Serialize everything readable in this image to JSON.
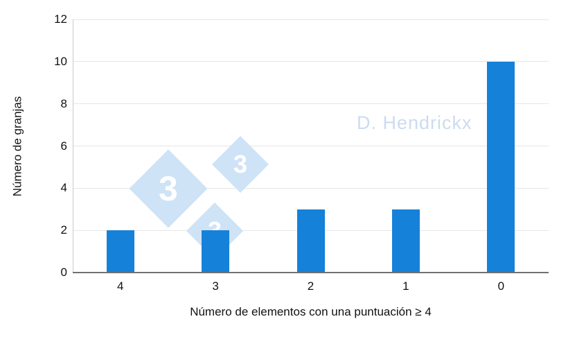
{
  "chart_data": {
    "type": "bar",
    "title": "",
    "categories": [
      "4",
      "3",
      "2",
      "1",
      "0"
    ],
    "values": [
      2,
      2,
      3,
      3,
      10
    ],
    "xlabel": "Número de elementos con una puntuación ≥ 4",
    "ylabel": "Número de granjas",
    "ylim": [
      0,
      12
    ],
    "yticks": [
      0,
      2,
      4,
      6,
      8,
      10,
      12
    ],
    "bar_color": "#1581d8",
    "gridline_color": "#e6e6e6",
    "grid": true,
    "legend": "none"
  },
  "watermarks": {
    "credit": "D. Hendrickx",
    "logo_digit": "3"
  }
}
